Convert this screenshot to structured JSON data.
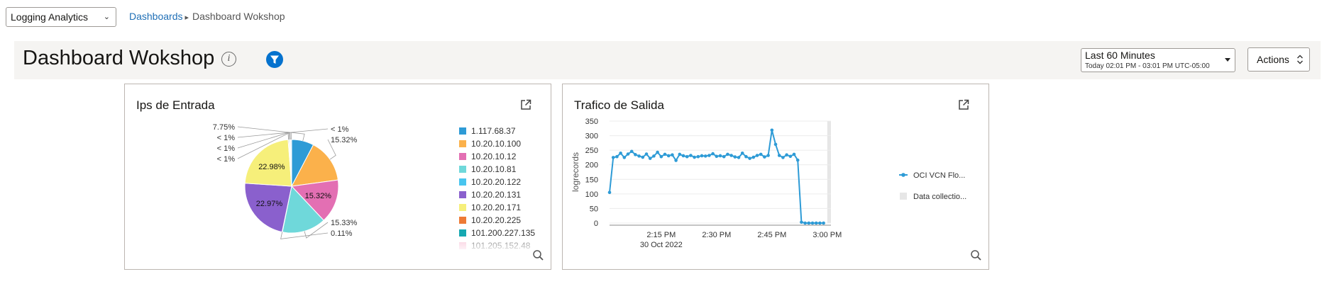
{
  "app_select": {
    "value": "Logging Analytics"
  },
  "breadcrumb": {
    "root": "Dashboards",
    "current": "Dashboard Wokshop"
  },
  "header": {
    "title": "Dashboard Wokshop"
  },
  "time_range": {
    "label": "Last 60 Minutes",
    "detail": "Today 02:01 PM - 03:01 PM UTC-05:00"
  },
  "actions": {
    "label": "Actions"
  },
  "widgets": {
    "pie": {
      "title": "Ips de Entrada"
    },
    "line": {
      "title": "Trafico de Salida"
    }
  },
  "chart_data": [
    {
      "type": "pie",
      "title": "Ips de Entrada",
      "legend_position": "right",
      "slices": [
        {
          "label": "1.117.68.37",
          "pct": 7.75,
          "display": "7.75%",
          "color": "#2e9bd6"
        },
        {
          "label": "10.20.10.100",
          "pct": 15.32,
          "display": "15.32%",
          "color": "#fbb14b"
        },
        {
          "label": "10.20.10.12",
          "pct": 15.32,
          "display": "15.32%",
          "color": "#e36fb3"
        },
        {
          "label": "10.20.10.81",
          "pct": 15.33,
          "display": "15.33%",
          "color": "#6fd8da"
        },
        {
          "label": "10.20.20.122",
          "pct": 0.11,
          "display": "0.11%",
          "color": "#48c5ef"
        },
        {
          "label": "10.20.20.131",
          "pct": 22.97,
          "display": "22.97%",
          "color": "#8a60cd"
        },
        {
          "label": "10.20.20.171",
          "pct": 22.98,
          "display": "22.98%",
          "color": "#f6ef7a"
        },
        {
          "label": "10.20.20.225",
          "pct": 0.3,
          "display": "< 1%",
          "color": "#ee7a35"
        },
        {
          "label": "101.200.227.135",
          "pct": 0.3,
          "display": "< 1%",
          "color": "#16a8b1"
        },
        {
          "label": "101.205.152.48",
          "pct": 0.3,
          "display": "< 1%",
          "color": "#f7b6cf"
        },
        {
          "label": "",
          "pct": 0.32,
          "display": "< 1%",
          "color": "#b3d5ea"
        }
      ]
    },
    {
      "type": "line",
      "title": "Trafico de Salida",
      "ylabel": "logrecords",
      "ylim": [
        0,
        350
      ],
      "yticks": [
        0,
        50,
        100,
        150,
        200,
        250,
        300,
        350
      ],
      "xticks": [
        {
          "minute": 15,
          "label": "2:15 PM"
        },
        {
          "minute": 30,
          "label": "2:30 PM"
        },
        {
          "minute": 45,
          "label": "2:45 PM"
        },
        {
          "minute": 60,
          "label": "3:00 PM"
        }
      ],
      "date_label": "30 Oct 2022",
      "x_start_minute": 1,
      "x_end_minute": 61,
      "shaded_from_minute": 60,
      "series": [
        {
          "name": "OCI VCN Flo...",
          "color": "#2e9bd6",
          "values": [
            105,
            225,
            228,
            240,
            225,
            237,
            246,
            235,
            230,
            226,
            237,
            222,
            230,
            243,
            228,
            236,
            231,
            234,
            215,
            236,
            231,
            228,
            232,
            226,
            228,
            231,
            230,
            232,
            238,
            229,
            231,
            228,
            236,
            232,
            227,
            225,
            240,
            228,
            222,
            226,
            232,
            236,
            227,
            232,
            319,
            270,
            232,
            225,
            234,
            229,
            236,
            216,
            3,
            0,
            0,
            0,
            0,
            0,
            0
          ]
        }
      ],
      "legend": [
        {
          "label": "OCI VCN Flo...",
          "kind": "line",
          "color": "#2e9bd6"
        },
        {
          "label": "Data collectio...",
          "kind": "area",
          "color": "#e6e6e6"
        }
      ]
    }
  ]
}
